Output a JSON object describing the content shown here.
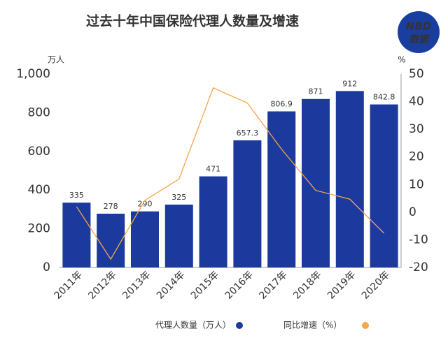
{
  "chart_data": {
    "type": "bar-line",
    "title": "过去十年中国保险代理人数量及增速",
    "logo": {
      "top": "NBD",
      "bottom": "数据"
    },
    "y_unit": "万人",
    "y2_unit": "%",
    "categories": [
      "2011年",
      "2012年",
      "2013年",
      "2014年",
      "2015年",
      "2016年",
      "2017年",
      "2018年",
      "2019年",
      "2020年"
    ],
    "series": [
      {
        "name": "代理人数量（万人）",
        "type": "bar",
        "color": "#1c3a9e",
        "values": [
          335,
          278,
          290,
          325,
          471,
          657.3,
          806.9,
          871,
          912,
          842.8
        ]
      },
      {
        "name": "同比增速（%）",
        "type": "line",
        "axis": "y2",
        "color": "#f5a54a",
        "values": [
          2,
          -17,
          4.3,
          12,
          45,
          39.5,
          22.8,
          7.9,
          4.7,
          -7.6
        ]
      }
    ],
    "ylim": [
      0,
      1000
    ],
    "yticks": [
      0,
      200,
      400,
      600,
      800,
      {
        "value": 1000,
        "label": "1,000"
      }
    ],
    "y2lim": [
      -20,
      50
    ],
    "y2ticks": [
      -20,
      -10,
      0,
      10,
      20,
      30,
      40,
      50
    ]
  }
}
